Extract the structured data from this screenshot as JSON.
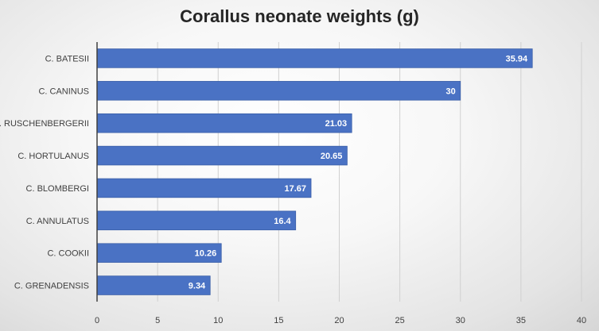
{
  "chart_data": {
    "type": "bar",
    "orientation": "horizontal",
    "title": "Corallus neonate weights (g)",
    "xlabel": "",
    "ylabel": "",
    "categories": [
      "C. BATESII",
      "C. CANINUS",
      "C. RUSCHENBERGERII",
      "C. HORTULANUS",
      "C. BLOMBERGI",
      "C. ANNULATUS",
      "C. COOKII",
      "C. GRENADENSIS"
    ],
    "values": [
      35.94,
      30,
      21.03,
      20.65,
      17.67,
      16.4,
      10.26,
      9.34
    ],
    "xlim": [
      0,
      40
    ],
    "xticks": [
      0,
      5,
      10,
      15,
      20,
      25,
      30,
      35,
      40
    ],
    "grid": true,
    "legend": "none",
    "bar_color": "#4a72c4",
    "bar_edge_color": "#3b5fa8",
    "grid_color": "#d0d0d0",
    "axis_color": "#404040"
  }
}
